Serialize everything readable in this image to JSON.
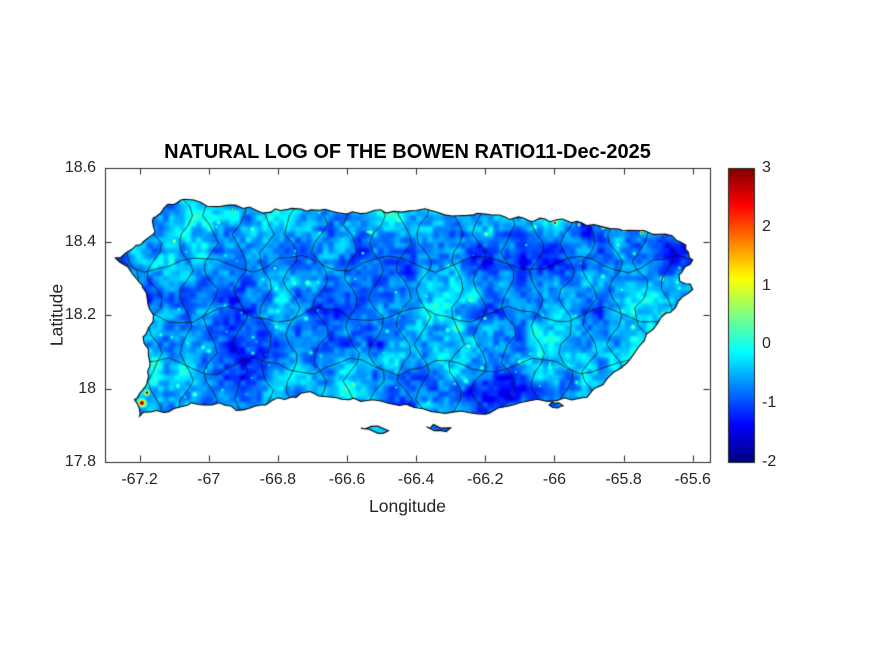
{
  "chart_data": {
    "type": "heatmap",
    "title": "NATURAL LOG OF THE BOWEN RATIO11-Dec-2025",
    "xlabel": "Longitude",
    "ylabel": "Latitude",
    "xlim": [
      -67.3,
      -65.55
    ],
    "ylim": [
      17.8,
      18.6
    ],
    "grid": false,
    "x_ticks": [
      {
        "value": -67.2,
        "label": "-67.2"
      },
      {
        "value": -67.0,
        "label": "-67"
      },
      {
        "value": -66.8,
        "label": "-66.8"
      },
      {
        "value": -66.6,
        "label": "-66.6"
      },
      {
        "value": -66.4,
        "label": "-66.4"
      },
      {
        "value": -66.2,
        "label": "-66.2"
      },
      {
        "value": -66.0,
        "label": "-66"
      },
      {
        "value": -65.8,
        "label": "-65.8"
      },
      {
        "value": -65.6,
        "label": "-65.6"
      }
    ],
    "y_ticks": [
      {
        "value": 17.8,
        "label": "17.8"
      },
      {
        "value": 18.0,
        "label": "18"
      },
      {
        "value": 18.2,
        "label": "18.2"
      },
      {
        "value": 18.4,
        "label": "18.4"
      },
      {
        "value": 18.6,
        "label": "18.6"
      }
    ],
    "colorbar": {
      "min": -2,
      "max": 3,
      "colormap": "jet",
      "position": "right",
      "ticks": [
        {
          "value": 3,
          "label": "3"
        },
        {
          "value": 2,
          "label": "2"
        },
        {
          "value": 1,
          "label": "1"
        },
        {
          "value": 0,
          "label": "0"
        },
        {
          "value": -1,
          "label": "-1"
        },
        {
          "value": -2,
          "label": "-2"
        }
      ]
    },
    "value_summary": "Field over Puerto Rico mostly between -1 and 0 (blue/cyan) with scattered green-yellow speckles and a few red hotspots near 3, with black municipality boundary lines",
    "island_outline": [
      [
        -67.16,
        18.465
      ],
      [
        -67.13,
        18.49
      ],
      [
        -67.07,
        18.515
      ],
      [
        -66.98,
        18.495
      ],
      [
        -66.9,
        18.49
      ],
      [
        -66.82,
        18.48
      ],
      [
        -66.76,
        18.49
      ],
      [
        -66.68,
        18.485
      ],
      [
        -66.6,
        18.475
      ],
      [
        -66.52,
        18.485
      ],
      [
        -66.44,
        18.48
      ],
      [
        -66.36,
        18.485
      ],
      [
        -66.28,
        18.47
      ],
      [
        -66.2,
        18.475
      ],
      [
        -66.13,
        18.46
      ],
      [
        -66.06,
        18.455
      ],
      [
        -65.99,
        18.46
      ],
      [
        -65.92,
        18.45
      ],
      [
        -65.84,
        18.435
      ],
      [
        -65.76,
        18.43
      ],
      [
        -65.68,
        18.42
      ],
      [
        -65.62,
        18.39
      ],
      [
        -65.6,
        18.35
      ],
      [
        -65.64,
        18.31
      ],
      [
        -65.6,
        18.27
      ],
      [
        -65.65,
        18.22
      ],
      [
        -65.7,
        18.18
      ],
      [
        -65.74,
        18.13
      ],
      [
        -65.79,
        18.07
      ],
      [
        -65.86,
        18.01
      ],
      [
        -65.92,
        17.975
      ],
      [
        -66.02,
        17.965
      ],
      [
        -66.12,
        17.955
      ],
      [
        -66.2,
        17.93
      ],
      [
        -66.3,
        17.935
      ],
      [
        -66.38,
        17.945
      ],
      [
        -66.48,
        17.96
      ],
      [
        -66.56,
        17.965
      ],
      [
        -66.63,
        17.975
      ],
      [
        -66.72,
        17.99
      ],
      [
        -66.78,
        17.97
      ],
      [
        -66.85,
        17.955
      ],
      [
        -66.92,
        17.94
      ],
      [
        -66.99,
        17.955
      ],
      [
        -67.06,
        17.955
      ],
      [
        -67.13,
        17.935
      ],
      [
        -67.2,
        17.925
      ],
      [
        -67.215,
        17.97
      ],
      [
        -67.18,
        18.01
      ],
      [
        -67.17,
        18.07
      ],
      [
        -67.19,
        18.14
      ],
      [
        -67.16,
        18.2
      ],
      [
        -67.18,
        18.26
      ],
      [
        -67.21,
        18.3
      ],
      [
        -67.27,
        18.355
      ],
      [
        -67.21,
        18.39
      ],
      [
        -67.16,
        18.42
      ]
    ],
    "islets": [
      [
        [
          -66.56,
          17.892
        ],
        [
          -66.51,
          17.878
        ],
        [
          -66.48,
          17.885
        ],
        [
          -66.53,
          17.897
        ]
      ],
      [
        [
          -66.37,
          17.896
        ],
        [
          -66.33,
          17.886
        ],
        [
          -66.3,
          17.893
        ],
        [
          -66.35,
          17.902
        ]
      ],
      [
        [
          -66.015,
          17.955
        ],
        [
          -65.99,
          17.947
        ],
        [
          -65.975,
          17.953
        ],
        [
          -66.0,
          17.96
        ]
      ]
    ],
    "hotspots": [
      [
        -67.195,
        17.962,
        7
      ],
      [
        -67.18,
        17.99,
        4
      ],
      [
        -66.93,
        18.487,
        2
      ],
      [
        -66.785,
        18.49,
        2
      ],
      [
        -66.64,
        18.488,
        2.5
      ],
      [
        -66.305,
        18.478,
        2.5
      ],
      [
        -66.0,
        18.452,
        2.5
      ],
      [
        -65.93,
        18.447,
        2.5
      ],
      [
        -65.86,
        18.44,
        3
      ],
      [
        -65.8,
        18.432,
        2.5
      ],
      [
        -65.75,
        18.425,
        2.5
      ],
      [
        -65.69,
        18.3,
        2.5
      ],
      [
        -65.69,
        18.21,
        2
      ],
      [
        -65.64,
        18.33,
        2
      ]
    ]
  }
}
